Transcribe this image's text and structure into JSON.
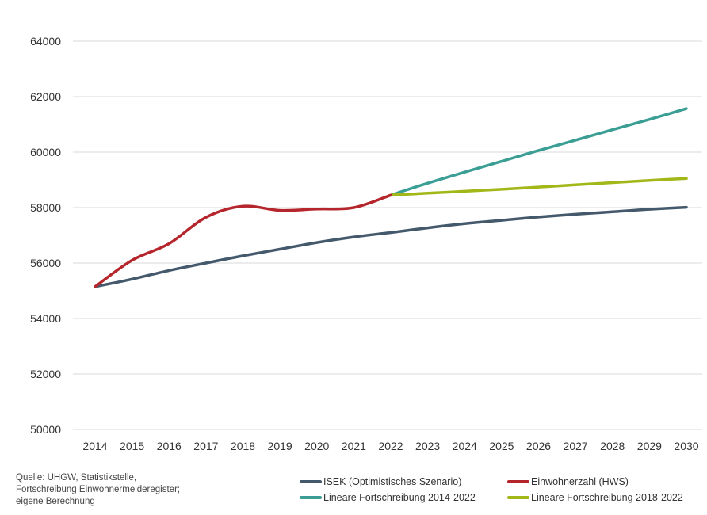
{
  "chart_data": {
    "type": "line",
    "title": "",
    "xlabel": "",
    "ylabel": "",
    "x": [
      2014,
      2015,
      2016,
      2017,
      2018,
      2019,
      2020,
      2021,
      2022,
      2023,
      2024,
      2025,
      2026,
      2027,
      2028,
      2029,
      2030
    ],
    "ylim": [
      50000,
      64000
    ],
    "yticks": [
      50000,
      52000,
      54000,
      56000,
      58000,
      60000,
      62000,
      64000
    ],
    "grid": true,
    "legend_position": "bottom",
    "series": [
      {
        "name": "ISEK (Optimistisches Szenario)",
        "color": "#44596b",
        "x": [
          2014,
          2015,
          2016,
          2017,
          2018,
          2019,
          2020,
          2021,
          2022,
          2023,
          2024,
          2025,
          2026,
          2027,
          2028,
          2029,
          2030
        ],
        "values": [
          55150,
          55420,
          55730,
          56000,
          56260,
          56500,
          56740,
          56940,
          57100,
          57270,
          57420,
          57540,
          57660,
          57760,
          57850,
          57940,
          58010
        ]
      },
      {
        "name": "Einwohnerzahl (HWS)",
        "color": "#b5262c",
        "x": [
          2014,
          2015,
          2016,
          2017,
          2018,
          2019,
          2020,
          2021,
          2022
        ],
        "values": [
          55150,
          56100,
          56700,
          57650,
          58050,
          57900,
          57950,
          58000,
          58450
        ]
      },
      {
        "name": "Lineare Fortschreibung 2014-2022",
        "color": "#3a9e94",
        "x": [
          2022,
          2023,
          2024,
          2025,
          2026,
          2027,
          2028,
          2029,
          2030
        ],
        "values": [
          58450,
          58880,
          59280,
          59670,
          60060,
          60430,
          60810,
          61180,
          61570
        ]
      },
      {
        "name": "Lineare Fortschreibung 2018-2022",
        "color": "#a2b818",
        "x": [
          2022,
          2023,
          2024,
          2025,
          2026,
          2027,
          2028,
          2029,
          2030
        ],
        "values": [
          58450,
          58520,
          58590,
          58660,
          58740,
          58820,
          58900,
          58980,
          59050
        ]
      }
    ]
  },
  "source_lines": [
    "Quelle: UHGW, Statistikstelle,",
    "Fortschreibung Einwohnermelderegister;",
    "eigene Berechnung"
  ]
}
